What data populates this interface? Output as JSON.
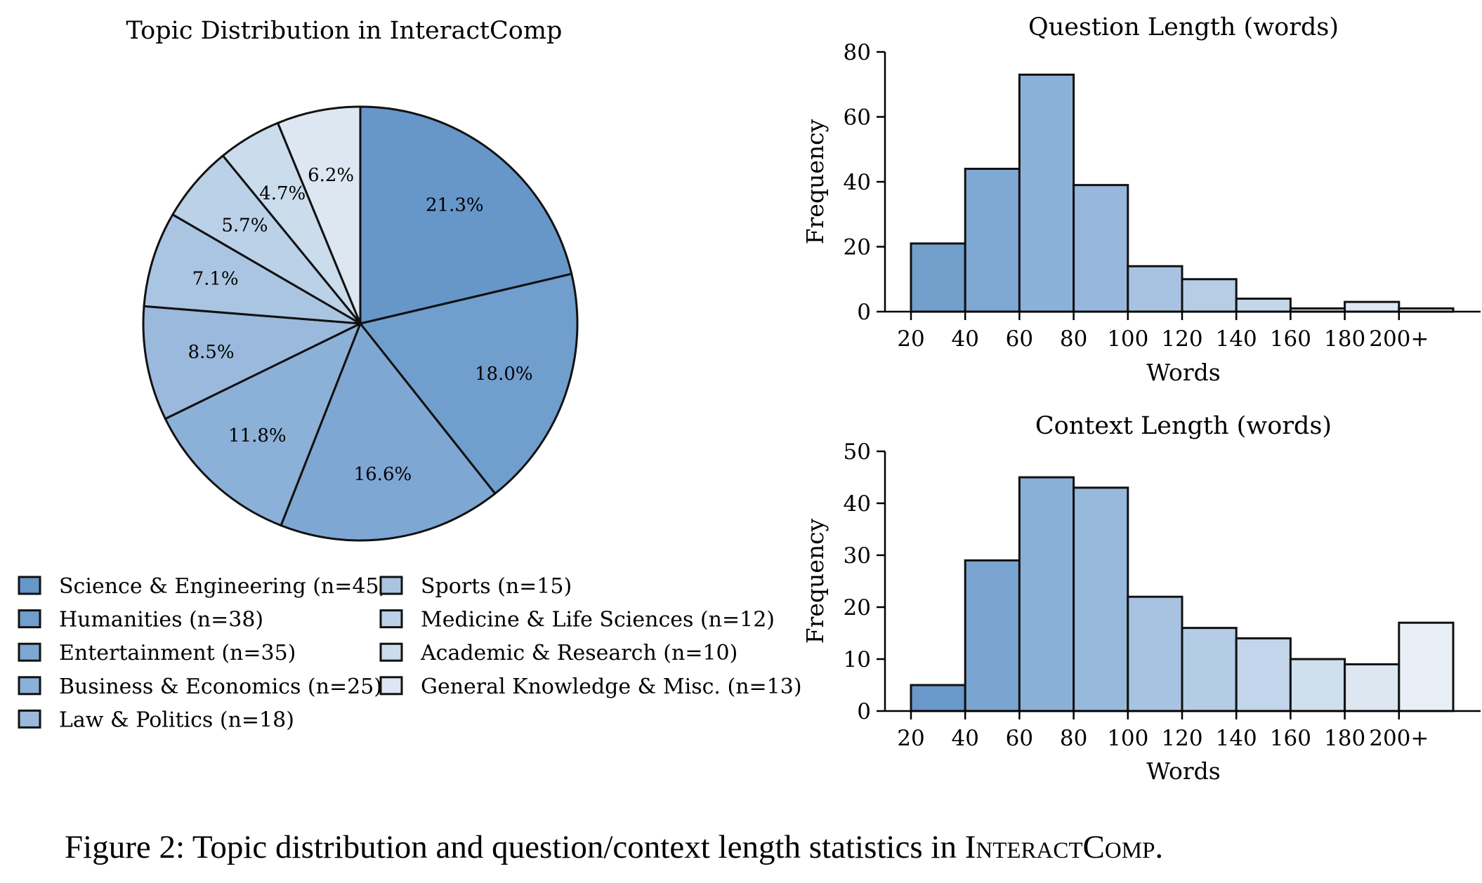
{
  "colors": {
    "edge": "#111111",
    "slices": [
      "#6796c9",
      "#709ecd",
      "#7fa7d3",
      "#8cb1d8",
      "#9ab9dc",
      "#aac5e2",
      "#bad1e7",
      "#cbdcec",
      "#dce7f1"
    ],
    "question_bars": [
      "#739fcc",
      "#7fa8d3",
      "#8cb1d8",
      "#97b8dc",
      "#a8c3e1",
      "#b6cde5",
      "#c4d6e9",
      "#d2e0ee",
      "#dde8f2",
      "#e8eff6"
    ],
    "context_bars": [
      "#6a98ca",
      "#7aa4d1",
      "#8ab0d7",
      "#97b9dc",
      "#a7c3e1",
      "#b4cce5",
      "#c2d5ea",
      "#cfdfee",
      "#dce7f2",
      "#e9eff6"
    ]
  },
  "chart_data": [
    {
      "type": "pie",
      "title": "Topic Distribution in InteractComp",
      "start_angle": 90,
      "direction": "clockwise",
      "slices": [
        {
          "label": "Science & Engineering (n=45)",
          "value": 21.3
        },
        {
          "label": "Humanities (n=38)",
          "value": 18.0
        },
        {
          "label": "Entertainment (n=35)",
          "value": 16.6
        },
        {
          "label": "Business & Economics (n=25)",
          "value": 11.8
        },
        {
          "label": "Law & Politics (n=18)",
          "value": 8.5
        },
        {
          "label": "Sports (n=15)",
          "value": 7.1
        },
        {
          "label": "Medicine & Life Sciences (n=12)",
          "value": 5.7
        },
        {
          "label": "Academic & Research (n=10)",
          "value": 4.7
        },
        {
          "label": "General Knowledge & Misc. (n=13)",
          "value": 6.2
        }
      ],
      "data_labels": [
        "21.3%",
        "18.0%",
        "16.6%",
        "11.8%",
        "8.5%",
        "7.1%",
        "5.7%",
        "4.7%",
        "6.2%"
      ],
      "legend": {
        "placement": "bottom",
        "columns": 2
      }
    },
    {
      "type": "bar",
      "title": "Question Length (words)",
      "xlabel": "Words",
      "ylabel": "Frequency",
      "ylim": [
        0,
        80
      ],
      "yticks": [
        0,
        20,
        40,
        60,
        80
      ],
      "xticks": [
        "20",
        "40",
        "60",
        "80",
        "100",
        "120",
        "140",
        "160",
        "180",
        "200+"
      ],
      "bins": [
        {
          "from": 20,
          "to": 40,
          "value": 21
        },
        {
          "from": 40,
          "to": 60,
          "value": 44
        },
        {
          "from": 60,
          "to": 80,
          "value": 73
        },
        {
          "from": 80,
          "to": 100,
          "value": 39
        },
        {
          "from": 100,
          "to": 120,
          "value": 14
        },
        {
          "from": 120,
          "to": 140,
          "value": 10
        },
        {
          "from": 140,
          "to": 160,
          "value": 4
        },
        {
          "from": 160,
          "to": 180,
          "value": 1
        },
        {
          "from": 180,
          "to": 200,
          "value": 3
        },
        {
          "from": 200,
          "to": 220,
          "value": 1
        }
      ]
    },
    {
      "type": "bar",
      "title": "Context Length (words)",
      "xlabel": "Words",
      "ylabel": "Frequency",
      "ylim": [
        0,
        50
      ],
      "yticks": [
        0,
        10,
        20,
        30,
        40,
        50
      ],
      "xticks": [
        "20",
        "40",
        "60",
        "80",
        "100",
        "120",
        "140",
        "160",
        "180",
        "200+"
      ],
      "bins": [
        {
          "from": 20,
          "to": 40,
          "value": 5
        },
        {
          "from": 40,
          "to": 60,
          "value": 29
        },
        {
          "from": 60,
          "to": 80,
          "value": 45
        },
        {
          "from": 80,
          "to": 100,
          "value": 43
        },
        {
          "from": 100,
          "to": 120,
          "value": 22
        },
        {
          "from": 120,
          "to": 140,
          "value": 16
        },
        {
          "from": 140,
          "to": 160,
          "value": 14
        },
        {
          "from": 160,
          "to": 180,
          "value": 10
        },
        {
          "from": 180,
          "to": 200,
          "value": 9
        },
        {
          "from": 200,
          "to": 220,
          "value": 17
        }
      ]
    }
  ],
  "caption": {
    "prefix": "Figure 2: Topic distribution and question/context length statistics in ",
    "name_initial_1": "I",
    "name_rest_1": "nteract",
    "name_initial_2": "C",
    "name_rest_2": "omp",
    "suffix": "."
  }
}
